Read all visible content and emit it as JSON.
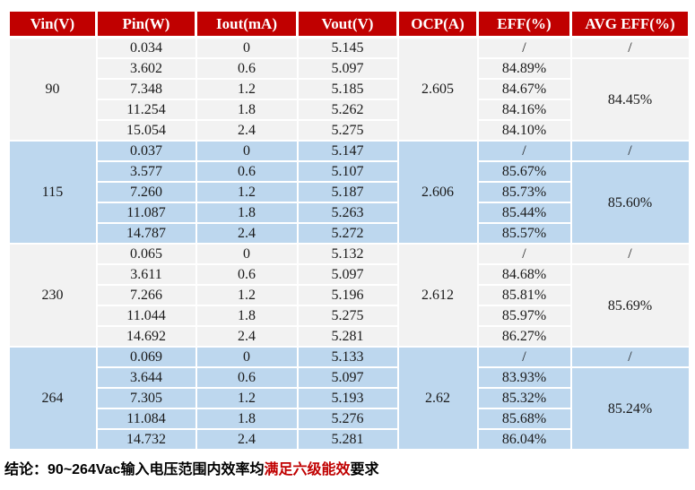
{
  "colors": {
    "header_bg": "#C00000",
    "header_text": "#FFFFFF",
    "band_gray": "#F2F2F2",
    "band_blue": "#BDD7EE",
    "cell_border": "#FFFFFF",
    "body_text": "#1A1A1A",
    "conclusion_text": "#000000",
    "conclusion_highlight": "#C00000"
  },
  "table": {
    "columns": [
      "Vin(V)",
      "Pin(W)",
      "Iout(mA)",
      "Vout(V)",
      "OCP(A)",
      "EFF(%)",
      "AVG EFF(%)"
    ],
    "groups": [
      {
        "vin": "90",
        "ocp": "2.605",
        "band": "gray",
        "avg_eff_row1": "/",
        "avg_eff": "84.45%",
        "rows": [
          {
            "pin": "0.034",
            "iout": "0",
            "vout": "5.145",
            "eff": "/"
          },
          {
            "pin": "3.602",
            "iout": "0.6",
            "vout": "5.097",
            "eff": "84.89%"
          },
          {
            "pin": "7.348",
            "iout": "1.2",
            "vout": "5.185",
            "eff": "84.67%"
          },
          {
            "pin": "11.254",
            "iout": "1.8",
            "vout": "5.262",
            "eff": "84.16%"
          },
          {
            "pin": "15.054",
            "iout": "2.4",
            "vout": "5.275",
            "eff": "84.10%"
          }
        ]
      },
      {
        "vin": "115",
        "ocp": "2.606",
        "band": "blue",
        "avg_eff_row1": "/",
        "avg_eff": "85.60%",
        "rows": [
          {
            "pin": "0.037",
            "iout": "0",
            "vout": "5.147",
            "eff": "/"
          },
          {
            "pin": "3.577",
            "iout": "0.6",
            "vout": "5.107",
            "eff": "85.67%"
          },
          {
            "pin": "7.260",
            "iout": "1.2",
            "vout": "5.187",
            "eff": "85.73%"
          },
          {
            "pin": "11.087",
            "iout": "1.8",
            "vout": "5.263",
            "eff": "85.44%"
          },
          {
            "pin": "14.787",
            "iout": "2.4",
            "vout": "5.272",
            "eff": "85.57%"
          }
        ]
      },
      {
        "vin": "230",
        "ocp": "2.612",
        "band": "gray",
        "avg_eff_row1": "/",
        "avg_eff": "85.69%",
        "rows": [
          {
            "pin": "0.065",
            "iout": "0",
            "vout": "5.132",
            "eff": "/"
          },
          {
            "pin": "3.611",
            "iout": "0.6",
            "vout": "5.097",
            "eff": "84.68%"
          },
          {
            "pin": "7.266",
            "iout": "1.2",
            "vout": "5.196",
            "eff": "85.81%"
          },
          {
            "pin": "11.044",
            "iout": "1.8",
            "vout": "5.275",
            "eff": "85.97%"
          },
          {
            "pin": "14.692",
            "iout": "2.4",
            "vout": "5.281",
            "eff": "86.27%"
          }
        ]
      },
      {
        "vin": "264",
        "ocp": "2.62",
        "band": "blue",
        "avg_eff_row1": "/",
        "avg_eff": "85.24%",
        "rows": [
          {
            "pin": "0.069",
            "iout": "0",
            "vout": "5.133",
            "eff": "/"
          },
          {
            "pin": "3.644",
            "iout": "0.6",
            "vout": "5.097",
            "eff": "83.93%"
          },
          {
            "pin": "7.305",
            "iout": "1.2",
            "vout": "5.193",
            "eff": "85.32%"
          },
          {
            "pin": "11.084",
            "iout": "1.8",
            "vout": "5.276",
            "eff": "85.68%"
          },
          {
            "pin": "14.732",
            "iout": "2.4",
            "vout": "5.281",
            "eff": "86.04%"
          }
        ]
      }
    ]
  },
  "conclusion": {
    "label": "结论：",
    "text_before": "90~264Vac输入电压范围内效率均",
    "highlight": "满足六级能效",
    "text_after": "要求"
  }
}
